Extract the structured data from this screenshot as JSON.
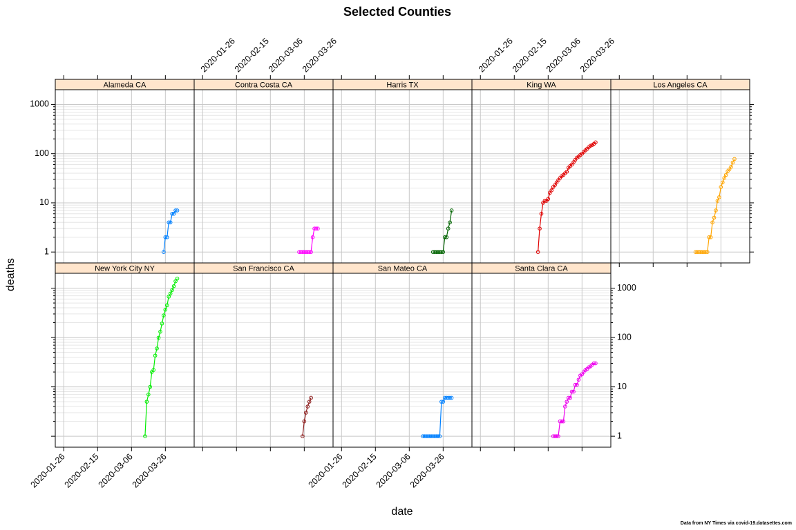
{
  "chart_data": {
    "type": "line",
    "layout": "lattice-panels",
    "title": "Selected Counties",
    "xlabel": "date",
    "ylabel": "deaths",
    "y_scale": "log",
    "ylim": [
      0.6,
      2000
    ],
    "xlim": [
      "2020-01-21",
      "2020-04-12"
    ],
    "x_ticks": [
      "2020-01-26",
      "2020-02-15",
      "2020-03-06",
      "2020-03-26"
    ],
    "y_ticks": [
      {
        "value": 1,
        "label": "1"
      },
      {
        "value": 10,
        "label": "10"
      },
      {
        "value": 100,
        "label": "100"
      },
      {
        "value": 1000,
        "label": "1000"
      }
    ],
    "grid": true,
    "strip_color": "#ffe5cc",
    "panels": [
      {
        "name": "Alameda CA",
        "color": "#0080ff",
        "dates": [
          "2020-03-25",
          "2020-03-26",
          "2020-03-27",
          "2020-03-28",
          "2020-03-29",
          "2020-03-30",
          "2020-03-31",
          "2020-04-01",
          "2020-04-02"
        ],
        "values": [
          1,
          2,
          2,
          4,
          4,
          6,
          6,
          7,
          7
        ]
      },
      {
        "name": "Contra Costa CA",
        "color": "#ff00ff",
        "dates": [
          "2020-03-23",
          "2020-03-24",
          "2020-03-25",
          "2020-03-26",
          "2020-03-27",
          "2020-03-28",
          "2020-03-29",
          "2020-03-30",
          "2020-03-31",
          "2020-04-01",
          "2020-04-02",
          "2020-04-03"
        ],
        "values": [
          1,
          1,
          1,
          1,
          1,
          1,
          1,
          1,
          2,
          3,
          3,
          3
        ]
      },
      {
        "name": "Harris TX",
        "color": "#006400",
        "dates": [
          "2020-03-20",
          "2020-03-21",
          "2020-03-22",
          "2020-03-23",
          "2020-03-24",
          "2020-03-25",
          "2020-03-26",
          "2020-03-27",
          "2020-03-28",
          "2020-03-29",
          "2020-03-30",
          "2020-03-31"
        ],
        "values": [
          1,
          1,
          1,
          1,
          1,
          1,
          1,
          2,
          2,
          3,
          4,
          7
        ]
      },
      {
        "name": "King WA",
        "color": "#e00000",
        "dates": [
          "2020-02-29",
          "2020-03-01",
          "2020-03-02",
          "2020-03-03",
          "2020-03-04",
          "2020-03-05",
          "2020-03-06",
          "2020-03-07",
          "2020-03-08",
          "2020-03-09",
          "2020-03-10",
          "2020-03-11",
          "2020-03-12",
          "2020-03-13",
          "2020-03-14",
          "2020-03-15",
          "2020-03-16",
          "2020-03-17",
          "2020-03-18",
          "2020-03-19",
          "2020-03-20",
          "2020-03-21",
          "2020-03-22",
          "2020-03-23",
          "2020-03-24",
          "2020-03-25",
          "2020-03-26",
          "2020-03-27",
          "2020-03-28",
          "2020-03-29",
          "2020-03-30",
          "2020-03-31",
          "2020-04-01",
          "2020-04-02",
          "2020-04-03"
        ],
        "values": [
          1,
          3,
          6,
          10,
          11,
          11,
          12,
          16,
          18,
          21,
          23,
          26,
          29,
          32,
          35,
          37,
          40,
          43,
          52,
          56,
          60,
          67,
          75,
          83,
          87,
          94,
          100,
          109,
          117,
          125,
          136,
          145,
          150,
          158,
          170
        ]
      },
      {
        "name": "Los Angeles CA",
        "color": "#ffa500",
        "dates": [
          "2020-03-11",
          "2020-03-12",
          "2020-03-13",
          "2020-03-14",
          "2020-03-15",
          "2020-03-16",
          "2020-03-17",
          "2020-03-18",
          "2020-03-19",
          "2020-03-20",
          "2020-03-21",
          "2020-03-22",
          "2020-03-23",
          "2020-03-24",
          "2020-03-25",
          "2020-03-26",
          "2020-03-27",
          "2020-03-28",
          "2020-03-29",
          "2020-03-30",
          "2020-03-31",
          "2020-04-01",
          "2020-04-02",
          "2020-04-03"
        ],
        "values": [
          1,
          1,
          1,
          1,
          1,
          1,
          1,
          1,
          2,
          2,
          4,
          5,
          7,
          11,
          13,
          21,
          26,
          32,
          37,
          44,
          48,
          54,
          66,
          78
        ]
      },
      {
        "name": "New York City NY",
        "color": "#00ee00",
        "dates": [
          "2020-03-14",
          "2020-03-15",
          "2020-03-16",
          "2020-03-17",
          "2020-03-18",
          "2020-03-19",
          "2020-03-20",
          "2020-03-21",
          "2020-03-22",
          "2020-03-23",
          "2020-03-24",
          "2020-03-25",
          "2020-03-26",
          "2020-03-27",
          "2020-03-28",
          "2020-03-29",
          "2020-03-30",
          "2020-03-31",
          "2020-04-01",
          "2020-04-02"
        ],
        "values": [
          1,
          5,
          7,
          10,
          20,
          22,
          43,
          60,
          99,
          131,
          192,
          280,
          366,
          450,
          672,
          776,
          914,
          1096,
          1374,
          1562
        ]
      },
      {
        "name": "San Francisco CA",
        "color": "#8b1a1a",
        "dates": [
          "2020-03-25",
          "2020-03-26",
          "2020-03-27",
          "2020-03-28",
          "2020-03-29",
          "2020-03-30"
        ],
        "values": [
          1,
          2,
          3,
          4,
          5,
          6
        ]
      },
      {
        "name": "San Mateo CA",
        "color": "#0080ff",
        "dates": [
          "2020-03-14",
          "2020-03-15",
          "2020-03-16",
          "2020-03-17",
          "2020-03-18",
          "2020-03-19",
          "2020-03-20",
          "2020-03-21",
          "2020-03-22",
          "2020-03-23",
          "2020-03-24",
          "2020-03-25",
          "2020-03-26",
          "2020-03-27",
          "2020-03-28",
          "2020-03-29",
          "2020-03-30",
          "2020-03-31"
        ],
        "values": [
          1,
          1,
          1,
          1,
          1,
          1,
          1,
          1,
          1,
          1,
          1,
          5,
          5,
          6,
          6,
          6,
          6,
          6
        ]
      },
      {
        "name": "Santa Clara CA",
        "color": "#ee00ee",
        "dates": [
          "2020-03-09",
          "2020-03-10",
          "2020-03-11",
          "2020-03-12",
          "2020-03-13",
          "2020-03-14",
          "2020-03-15",
          "2020-03-16",
          "2020-03-17",
          "2020-03-18",
          "2020-03-19",
          "2020-03-20",
          "2020-03-21",
          "2020-03-22",
          "2020-03-23",
          "2020-03-24",
          "2020-03-25",
          "2020-03-26",
          "2020-03-27",
          "2020-03-28",
          "2020-03-29",
          "2020-03-30",
          "2020-03-31",
          "2020-04-01",
          "2020-04-02",
          "2020-04-03"
        ],
        "values": [
          1,
          1,
          1,
          1,
          2,
          2,
          2,
          4,
          5,
          6,
          6,
          8,
          8,
          11,
          11,
          14,
          17,
          18,
          20,
          22,
          23,
          25,
          26,
          28,
          30,
          30
        ]
      }
    ]
  },
  "footer": {
    "credit": "Data from NY Times via covid-19.datasettes.com"
  }
}
